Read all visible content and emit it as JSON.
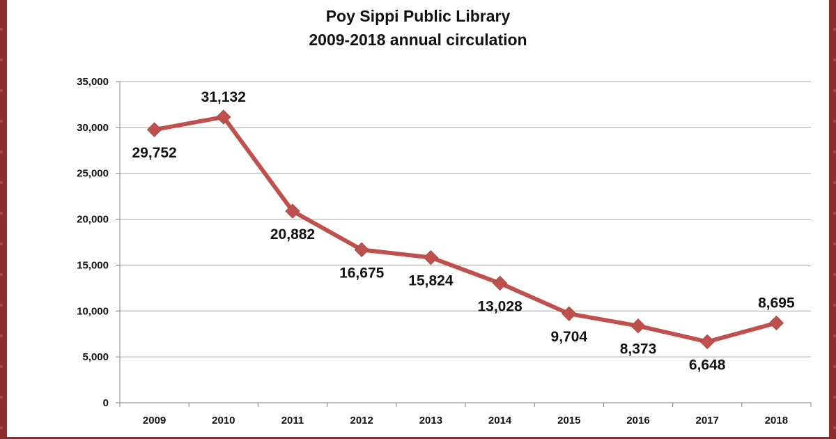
{
  "chart_data": {
    "type": "line",
    "title": "Poy Sippi Public Library",
    "subtitle": "2009-2018 annual circulation",
    "xlabel": "",
    "ylabel": "",
    "categories": [
      "2009",
      "2010",
      "2011",
      "2012",
      "2013",
      "2014",
      "2015",
      "2016",
      "2017",
      "2018"
    ],
    "series": [
      {
        "values": [
          29752,
          31132,
          20882,
          16675,
          15824,
          13028,
          9704,
          8373,
          6648,
          8695
        ],
        "data_labels": [
          "29,752",
          "31,132",
          "20,882",
          "16,675",
          "15,824",
          "13,028",
          "9,704",
          "8,373",
          "6,648",
          "8,695"
        ],
        "color": "#c0504d"
      }
    ],
    "ylim": [
      0,
      35000
    ],
    "yticks": [
      0,
      5000,
      10000,
      15000,
      20000,
      25000,
      30000,
      35000
    ],
    "ytick_labels": [
      "0",
      "5,000",
      "10,000",
      "15,000",
      "20,000",
      "25,000",
      "30,000",
      "35,000"
    ],
    "grid": true,
    "legend": "none",
    "marker": "diamond"
  }
}
